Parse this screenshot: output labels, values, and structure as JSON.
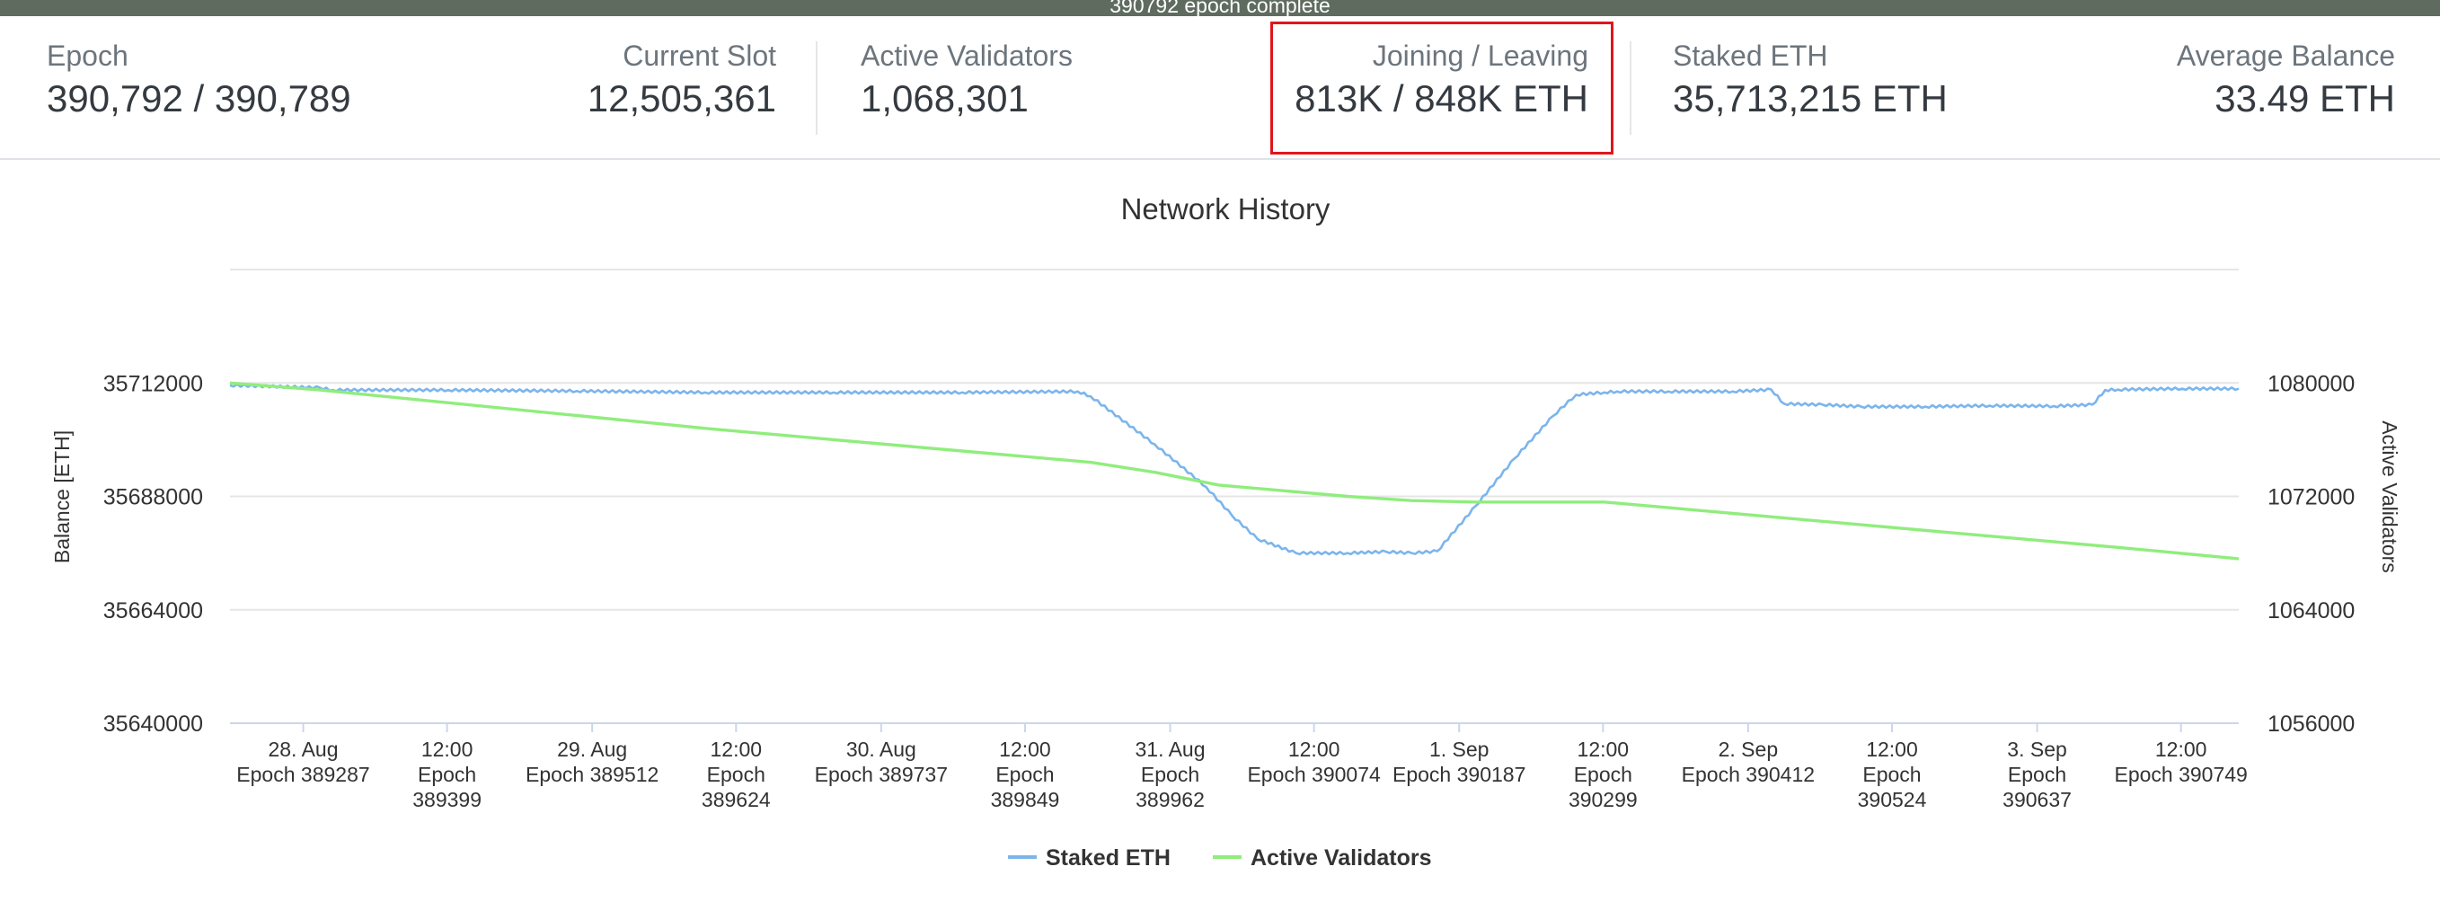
{
  "banner": {
    "text": "390792 epoch complete"
  },
  "stats": {
    "epoch": {
      "label": "Epoch",
      "value": "390,792 / 390,789"
    },
    "current_slot": {
      "label": "Current Slot",
      "value": "12,505,361"
    },
    "active_validators": {
      "label": "Active Validators",
      "value": "1,068,301"
    },
    "joining_leaving": {
      "label": "Joining / Leaving",
      "value": "813K / 848K ETH"
    },
    "staked_eth": {
      "label": "Staked ETH",
      "value": "35,713,215 ETH"
    },
    "average_balance": {
      "label": "Average Balance",
      "value": "33.49 ETH"
    }
  },
  "colors": {
    "staked": "#7cb5ec",
    "validators": "#90ed7d",
    "highlight": "#e0161b",
    "banner": "#5f6b5f"
  },
  "chart_data": {
    "type": "line",
    "title": "Network History",
    "ylabel": "Balance [ETH]",
    "y2label": "Active Validators",
    "ylim": [
      35640000,
      35736000
    ],
    "y2lim": [
      1056000,
      1088000
    ],
    "yticks": [
      "35640000",
      "35664000",
      "35688000",
      "35712000"
    ],
    "y2ticks": [
      "1056000",
      "1064000",
      "1072000",
      "1080000"
    ],
    "xlim": [
      389230,
      390794
    ],
    "x_ticks": [
      {
        "x": 389287,
        "lines": [
          "28. Aug",
          "Epoch 389287"
        ]
      },
      {
        "x": 389399,
        "lines": [
          "12:00",
          "Epoch",
          "389399"
        ]
      },
      {
        "x": 389512,
        "lines": [
          "29. Aug",
          "Epoch 389512"
        ]
      },
      {
        "x": 389624,
        "lines": [
          "12:00",
          "Epoch",
          "389624"
        ]
      },
      {
        "x": 389737,
        "lines": [
          "30. Aug",
          "Epoch 389737"
        ]
      },
      {
        "x": 389849,
        "lines": [
          "12:00",
          "Epoch",
          "389849"
        ]
      },
      {
        "x": 389962,
        "lines": [
          "31. Aug",
          "Epoch",
          "389962"
        ]
      },
      {
        "x": 390074,
        "lines": [
          "12:00",
          "Epoch 390074"
        ]
      },
      {
        "x": 390187,
        "lines": [
          "1. Sep",
          "Epoch 390187"
        ]
      },
      {
        "x": 390299,
        "lines": [
          "12:00",
          "Epoch",
          "390299"
        ]
      },
      {
        "x": 390412,
        "lines": [
          "2. Sep",
          "Epoch 390412"
        ]
      },
      {
        "x": 390524,
        "lines": [
          "12:00",
          "Epoch",
          "390524"
        ]
      },
      {
        "x": 390637,
        "lines": [
          "3. Sep",
          "Epoch",
          "390637"
        ]
      },
      {
        "x": 390749,
        "lines": [
          "12:00",
          "Epoch 390749"
        ]
      }
    ],
    "series": [
      {
        "name": "Staked ETH",
        "axis": "left",
        "x": [
          389230,
          389300,
          389310,
          389400,
          389500,
          389600,
          389700,
          389800,
          389890,
          389900,
          389950,
          389990,
          390010,
          390030,
          390060,
          390100,
          390130,
          390150,
          390170,
          390200,
          390230,
          390260,
          390278,
          390300,
          390310,
          390350,
          390400,
          390430,
          390440,
          390470,
          390500,
          390550,
          390600,
          390650,
          390680,
          390690,
          390700,
          390750,
          390794
        ],
        "y": [
          35711500,
          35711000,
          35710500,
          35710500,
          35710300,
          35710000,
          35710000,
          35710000,
          35710200,
          35709200,
          35699000,
          35690000,
          35684000,
          35679000,
          35676000,
          35676000,
          35676300,
          35676000,
          35676400,
          35686000,
          35696000,
          35705000,
          35709500,
          35710000,
          35710200,
          35710200,
          35710200,
          35710600,
          35707600,
          35707400,
          35707000,
          35707000,
          35707200,
          35707100,
          35707400,
          35710500,
          35710600,
          35710800,
          35710800
        ]
      },
      {
        "name": "Active Validators",
        "axis": "right",
        "x": [
          389230,
          389300,
          389400,
          389500,
          389600,
          389700,
          389800,
          389900,
          389950,
          390000,
          390050,
          390100,
          390150,
          390200,
          390250,
          390300,
          390350,
          390400,
          390500,
          390600,
          390700,
          390794
        ],
        "y": [
          1080000,
          1079500,
          1078600,
          1077700,
          1076800,
          1076000,
          1075200,
          1074400,
          1073700,
          1072800,
          1072400,
          1072000,
          1071700,
          1071600,
          1071600,
          1071600,
          1071200,
          1070800,
          1070000,
          1069200,
          1068400,
          1067600
        ]
      }
    ]
  }
}
